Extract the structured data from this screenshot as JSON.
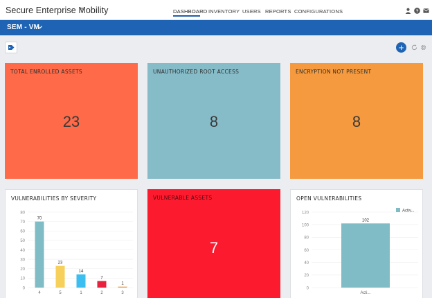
{
  "header": {
    "app_title": "Secure Enterprise Mobility",
    "tabs": [
      {
        "label": "DASHBOARD",
        "active": true
      },
      {
        "label": "INVENTORY",
        "active": false
      },
      {
        "label": "USERS",
        "active": false
      },
      {
        "label": "REPORTS",
        "active": false
      },
      {
        "label": "CONFIGURATIONS",
        "active": false
      }
    ],
    "icons": [
      "user-icon",
      "help-icon",
      "mail-icon"
    ]
  },
  "subbar": {
    "title": "SEM - VM"
  },
  "toolbar": {
    "icons": [
      "tag-icon",
      "add-icon",
      "refresh-icon",
      "gear-icon"
    ]
  },
  "tiles": [
    {
      "title": "TOTAL ENROLLED ASSETS",
      "value": "23",
      "color": "#ff6a48"
    },
    {
      "title": "UNAUTHORIZED ROOT ACCESS",
      "value": "8",
      "color": "#86bcc8"
    },
    {
      "title": "ENCRYPTION NOT PRESENT",
      "value": "8",
      "color": "#f59a3e"
    },
    {
      "title": "VULNERABLE ASSETS",
      "value": "7",
      "color": "#fb1a2e"
    }
  ],
  "severity_card": {
    "title": "VULNERABILITIES BY SEVERITY"
  },
  "open_card": {
    "title": "OPEN VULNERABILITIES"
  },
  "chart_data": [
    {
      "type": "bar",
      "title": "VULNERABILITIES BY SEVERITY",
      "categories": [
        "4",
        "5",
        "1",
        "2",
        "3"
      ],
      "values": [
        70,
        23,
        14,
        7,
        1
      ],
      "colors": [
        "#80bcc6",
        "#f6d05a",
        "#3cbff0",
        "#e8213f",
        "#f59a3e"
      ],
      "yticks": [
        0,
        10,
        20,
        30,
        40,
        50,
        60,
        70,
        80
      ],
      "ylim": [
        0,
        80
      ],
      "grid": true
    },
    {
      "type": "bar",
      "title": "OPEN VULNERABILITIES",
      "categories": [
        "Acti..."
      ],
      "series": [
        {
          "name": "Activ...",
          "values": [
            102
          ]
        }
      ],
      "colors": [
        "#80bcc6"
      ],
      "yticks": [
        0,
        20,
        40,
        60,
        80,
        100,
        120
      ],
      "ylim": [
        0,
        120
      ],
      "legend": "top-right",
      "grid": true
    }
  ]
}
